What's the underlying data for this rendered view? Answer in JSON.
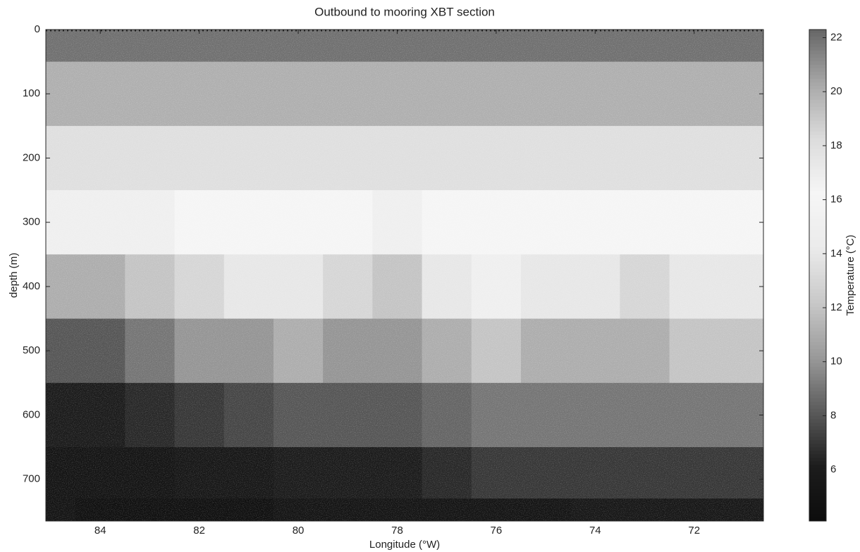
{
  "chart_data": {
    "type": "heatmap",
    "title": "Outbound to mooring XBT section",
    "xlabel": "Longitude (°W)",
    "ylabel": "depth (m)",
    "colorbar_label": "Temperature (°C)",
    "x": [
      85,
      84,
      83,
      82,
      81,
      80,
      79,
      78,
      77,
      76,
      75,
      74,
      73,
      72,
      71
    ],
    "y": [
      0,
      100,
      200,
      300,
      400,
      500,
      600,
      700,
      760
    ],
    "values": [
      [
        22,
        22,
        22,
        22,
        22,
        22,
        22,
        22,
        22,
        22,
        22,
        22,
        22,
        22,
        22
      ],
      [
        20,
        20,
        20,
        20,
        20,
        20,
        20,
        20,
        20,
        20,
        20,
        20,
        20,
        20,
        20
      ],
      [
        18,
        18,
        18,
        18,
        18,
        18,
        18,
        18,
        18,
        18,
        18,
        18,
        18,
        18,
        18
      ],
      [
        15,
        15,
        15,
        16,
        16,
        16,
        16,
        15,
        16,
        16,
        16,
        16,
        16,
        16,
        16
      ],
      [
        11,
        11,
        12,
        13,
        14,
        14,
        13,
        12,
        14,
        15,
        14,
        14,
        13,
        14,
        14
      ],
      [
        8,
        8,
        9,
        10,
        10,
        11,
        10,
        10,
        11,
        12,
        11,
        11,
        11,
        12,
        12
      ],
      [
        6,
        6,
        6.5,
        7,
        7.5,
        8,
        8,
        8,
        8.5,
        9,
        9,
        9,
        9,
        9,
        9
      ],
      [
        5,
        5,
        5,
        5.5,
        5.5,
        6,
        6,
        6,
        6.5,
        7,
        7,
        7,
        7,
        7,
        7
      ],
      [
        5,
        4.5,
        4.5,
        4.5,
        4.5,
        5,
        5,
        5,
        5,
        5,
        5,
        5.5,
        5.5,
        5.5,
        5.5
      ]
    ],
    "xlim": [
      85.1,
      70.6
    ],
    "ylim": [
      0,
      765
    ],
    "xticks": [
      84,
      82,
      80,
      78,
      76,
      74,
      72
    ],
    "yticks": [
      0,
      100,
      200,
      300,
      400,
      500,
      600,
      700
    ],
    "clim": [
      4.1,
      22.3
    ],
    "cticks": [
      6,
      8,
      10,
      12,
      14,
      16,
      18,
      20,
      22
    ],
    "colormap": [
      "#0d0d0d",
      "#1c1c1c",
      "#5a5a5a",
      "#9a9a9a",
      "#c8c8c8",
      "#ebebeb",
      "#f6f6f6",
      "#dcdcdc",
      "#a8a8a8",
      "#666666"
    ]
  }
}
